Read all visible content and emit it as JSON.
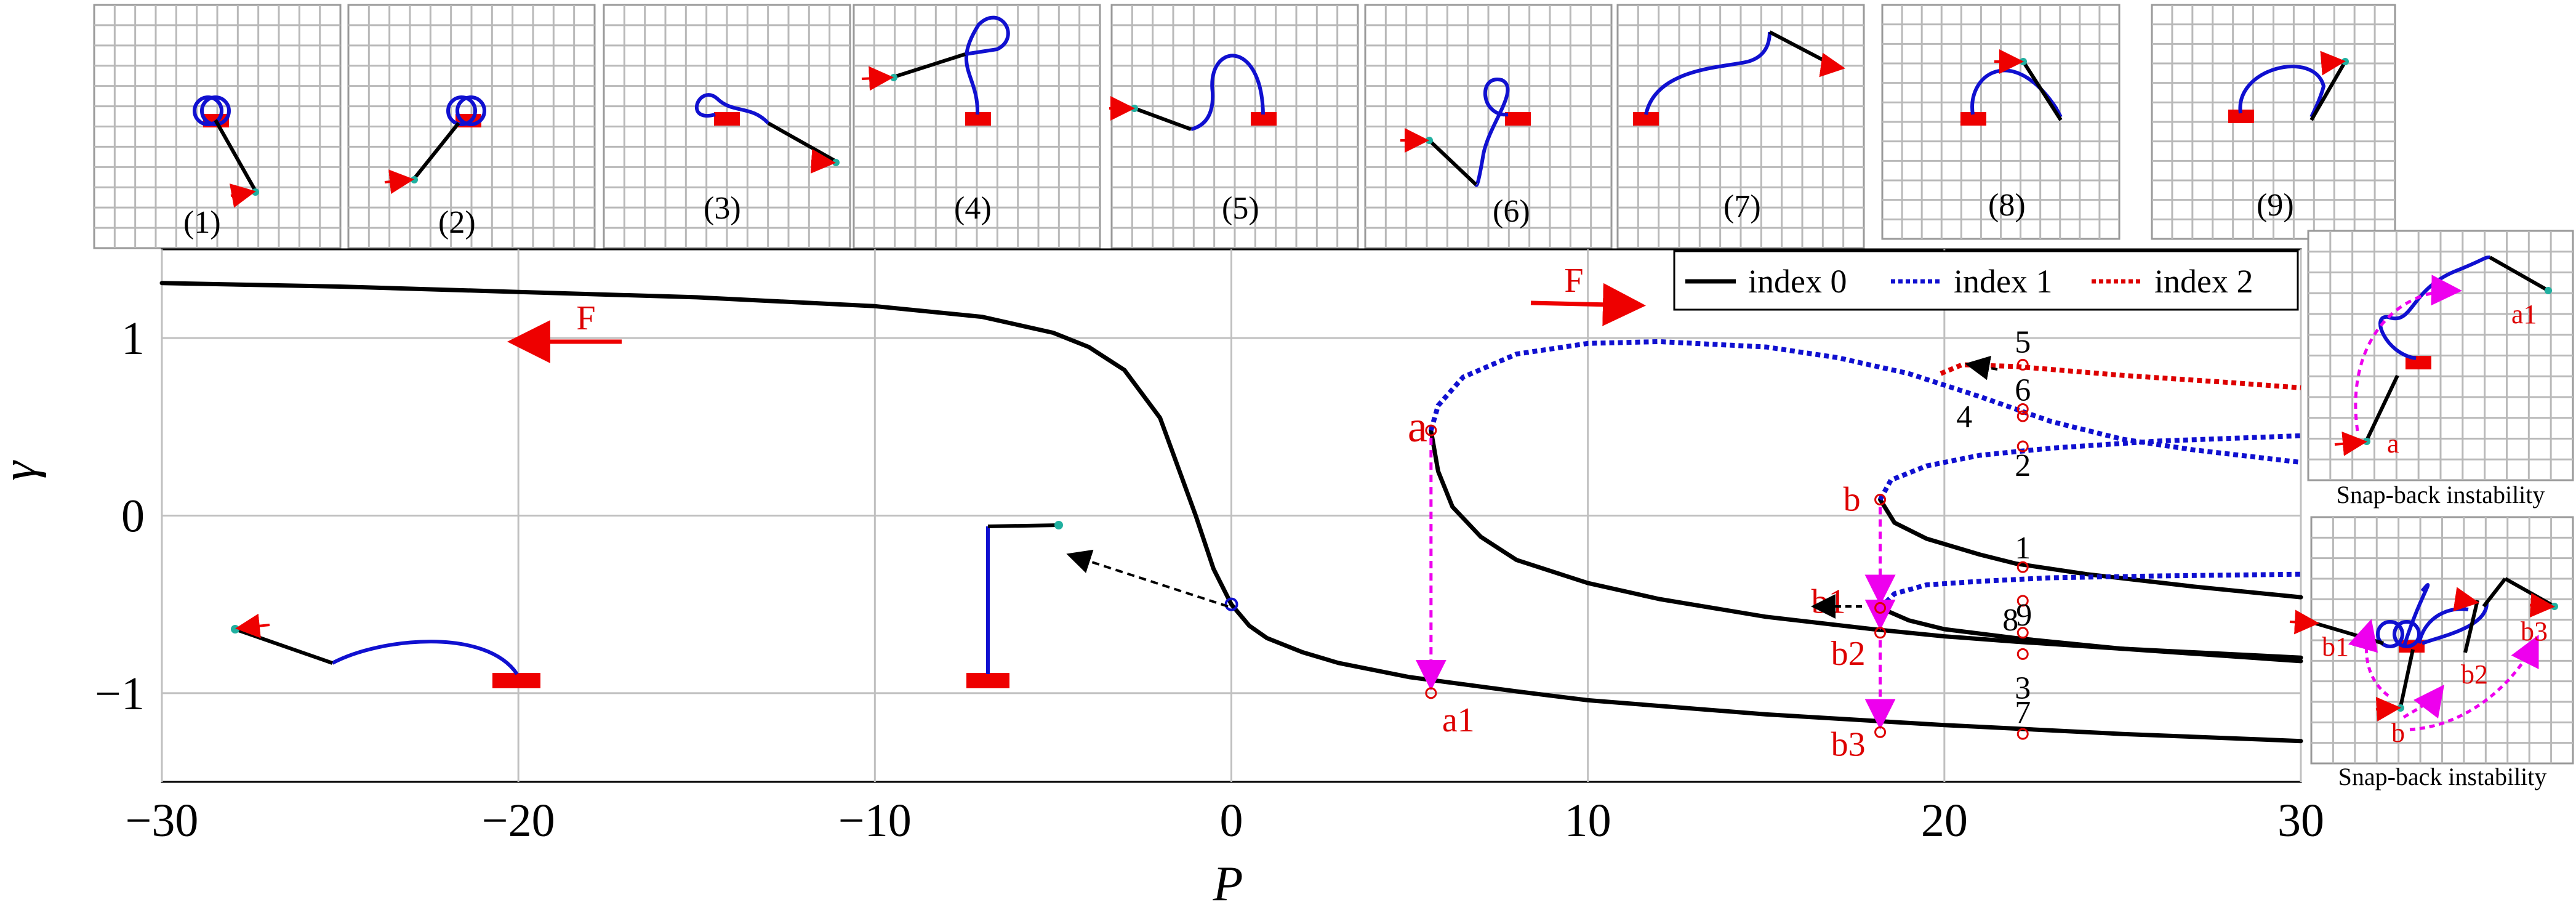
{
  "chart_data": {
    "type": "line",
    "xlabel": "P",
    "ylabel": "γ",
    "xlim": [
      -30,
      30
    ],
    "ylim": [
      -1.5,
      1.5
    ],
    "xticks": [
      -30,
      -20,
      -10,
      0,
      10,
      20,
      30
    ],
    "xtick_labels": [
      "−30",
      "−20",
      "−10",
      "0",
      "10",
      "20",
      "30"
    ],
    "yticks": [
      1,
      0,
      -1
    ],
    "ytick_labels": [
      "1",
      "0",
      "−1"
    ],
    "grid": true,
    "legend_position": "top-right",
    "legend": [
      {
        "label": "index 0",
        "color": "#000000",
        "style": "solid"
      },
      {
        "label": "index 1",
        "color": "#1010d0",
        "style": "dotted"
      },
      {
        "label": "index 2",
        "color": "#dd0000",
        "style": "dotted"
      }
    ],
    "series": [
      {
        "index": 0,
        "color": "#000000",
        "style": "solid",
        "points": [
          [
            -30,
            1.31
          ],
          [
            -25,
            1.29
          ],
          [
            -20,
            1.26
          ],
          [
            -15,
            1.23
          ],
          [
            -10,
            1.18
          ],
          [
            -7,
            1.12
          ],
          [
            -5,
            1.03
          ],
          [
            -4,
            0.95
          ],
          [
            -3,
            0.82
          ],
          [
            -2,
            0.55
          ],
          [
            -1,
            0.0
          ],
          [
            -0.5,
            -0.3
          ],
          [
            0,
            -0.5
          ],
          [
            0.5,
            -0.62
          ],
          [
            1,
            -0.69
          ],
          [
            2,
            -0.77
          ],
          [
            3,
            -0.83
          ],
          [
            5,
            -0.91
          ],
          [
            8,
            -0.99
          ],
          [
            10,
            -1.04
          ],
          [
            15,
            -1.12
          ],
          [
            20,
            -1.18
          ],
          [
            25,
            -1.23
          ],
          [
            30,
            -1.27
          ]
        ]
      },
      {
        "index": 0,
        "color": "#000000",
        "style": "solid",
        "points": [
          [
            5.6,
            0.48
          ],
          [
            5.8,
            0.25
          ],
          [
            6.2,
            0.05
          ],
          [
            7,
            -0.12
          ],
          [
            8,
            -0.25
          ],
          [
            10,
            -0.38
          ],
          [
            12,
            -0.47
          ],
          [
            15,
            -0.57
          ],
          [
            18,
            -0.64
          ],
          [
            20,
            -0.68
          ],
          [
            22,
            -0.71
          ],
          [
            25,
            -0.75
          ],
          [
            30,
            -0.8
          ]
        ]
      },
      {
        "index": 0,
        "color": "#000000",
        "style": "solid",
        "points": [
          [
            18.2,
            0.09
          ],
          [
            18.6,
            -0.04
          ],
          [
            19.5,
            -0.13
          ],
          [
            21,
            -0.22
          ],
          [
            22,
            -0.27
          ],
          [
            24,
            -0.33
          ],
          [
            27,
            -0.4
          ],
          [
            30,
            -0.46
          ]
        ]
      },
      {
        "index": 0,
        "color": "#000000",
        "style": "solid",
        "points": [
          [
            18.2,
            -0.52
          ],
          [
            19,
            -0.59
          ],
          [
            20,
            -0.64
          ],
          [
            22,
            -0.69
          ],
          [
            25,
            -0.75
          ],
          [
            30,
            -0.82
          ]
        ]
      },
      {
        "index": 1,
        "color": "#1010d0",
        "style": "dotted",
        "points": [
          [
            5.6,
            0.48
          ],
          [
            5.8,
            0.62
          ],
          [
            6.5,
            0.78
          ],
          [
            8,
            0.91
          ],
          [
            10,
            0.97
          ],
          [
            12,
            0.98
          ],
          [
            15,
            0.95
          ],
          [
            17,
            0.89
          ],
          [
            19,
            0.8
          ],
          [
            21,
            0.67
          ],
          [
            23,
            0.53
          ],
          [
            25,
            0.43
          ],
          [
            27,
            0.37
          ],
          [
            30,
            0.3
          ]
        ]
      },
      {
        "index": 1,
        "color": "#1010d0",
        "style": "dotted",
        "points": [
          [
            18.2,
            0.09
          ],
          [
            18.5,
            0.2
          ],
          [
            19.5,
            0.28
          ],
          [
            21,
            0.34
          ],
          [
            23,
            0.38
          ],
          [
            26,
            0.42
          ],
          [
            30,
            0.45
          ]
        ]
      },
      {
        "index": 1,
        "color": "#1010d0",
        "style": "dotted",
        "points": [
          [
            18.2,
            -0.52
          ],
          [
            18.6,
            -0.44
          ],
          [
            19.5,
            -0.39
          ],
          [
            21,
            -0.37
          ],
          [
            23,
            -0.35
          ],
          [
            26,
            -0.34
          ],
          [
            30,
            -0.33
          ]
        ]
      },
      {
        "index": 2,
        "color": "#dd0000",
        "style": "dotted",
        "points": [
          [
            19.9,
            0.8
          ],
          [
            20.5,
            0.85
          ],
          [
            22,
            0.84
          ],
          [
            25,
            0.79
          ],
          [
            28,
            0.75
          ],
          [
            30,
            0.72
          ]
        ]
      }
    ],
    "labeled_points": [
      {
        "label": "a",
        "x": 5.6,
        "y": 0.48,
        "color": "#dd0000"
      },
      {
        "label": "a1",
        "x": 5.6,
        "y": -1.0,
        "color": "#dd0000"
      },
      {
        "label": "b",
        "x": 18.2,
        "y": 0.09,
        "color": "#dd0000"
      },
      {
        "label": "b1",
        "x": 18.2,
        "y": -0.52,
        "color": "#dd0000"
      },
      {
        "label": "b2",
        "x": 18.2,
        "y": -0.66,
        "color": "#dd0000"
      },
      {
        "label": "b3",
        "x": 18.2,
        "y": -1.22,
        "color": "#dd0000"
      },
      {
        "label": "1",
        "x": 22.2,
        "y": -0.29,
        "color": "#000000"
      },
      {
        "label": "2",
        "x": 22.2,
        "y": 0.39,
        "color": "#000000"
      },
      {
        "label": "3",
        "x": 22.2,
        "y": -0.78,
        "color": "#000000"
      },
      {
        "label": "4",
        "x": 22.2,
        "y": 0.56,
        "color": "#000000"
      },
      {
        "label": "5",
        "x": 22.2,
        "y": 0.85,
        "color": "#000000"
      },
      {
        "label": "6",
        "x": 22.2,
        "y": 0.6,
        "color": "#000000"
      },
      {
        "label": "7",
        "x": 22.2,
        "y": -1.23,
        "color": "#000000"
      },
      {
        "label": "8",
        "x": 22.2,
        "y": -0.48,
        "color": "#000000"
      },
      {
        "label": "9",
        "x": 22.2,
        "y": -0.66,
        "color": "#000000"
      }
    ],
    "snap_jumps": [
      {
        "x": 5.6,
        "from": 0.48,
        "to": -1.0
      },
      {
        "x": 18.2,
        "from": 0.09,
        "to": -0.52
      },
      {
        "x": 18.2,
        "from": -0.52,
        "to": -0.66
      },
      {
        "x": 18.2,
        "from": -0.66,
        "to": -1.22
      }
    ],
    "annotations": [
      {
        "text": "F",
        "color": "#dd0000",
        "direction": "left"
      },
      {
        "text": "F",
        "color": "#dd0000",
        "direction": "right"
      }
    ]
  },
  "insets": {
    "top": [
      {
        "label": "(1)"
      },
      {
        "label": "(2)"
      },
      {
        "label": "(3)"
      },
      {
        "label": "(4)"
      },
      {
        "label": "(5)"
      },
      {
        "label": "(6)"
      },
      {
        "label": "(7)"
      },
      {
        "label": "(8)"
      },
      {
        "label": "(9)"
      }
    ],
    "right": [
      {
        "caption": "Snap-back instability",
        "labels": [
          "a",
          "a1"
        ]
      },
      {
        "caption": "Snap-back instability",
        "labels": [
          "b1",
          "b",
          "b2",
          "b3"
        ]
      }
    ]
  }
}
